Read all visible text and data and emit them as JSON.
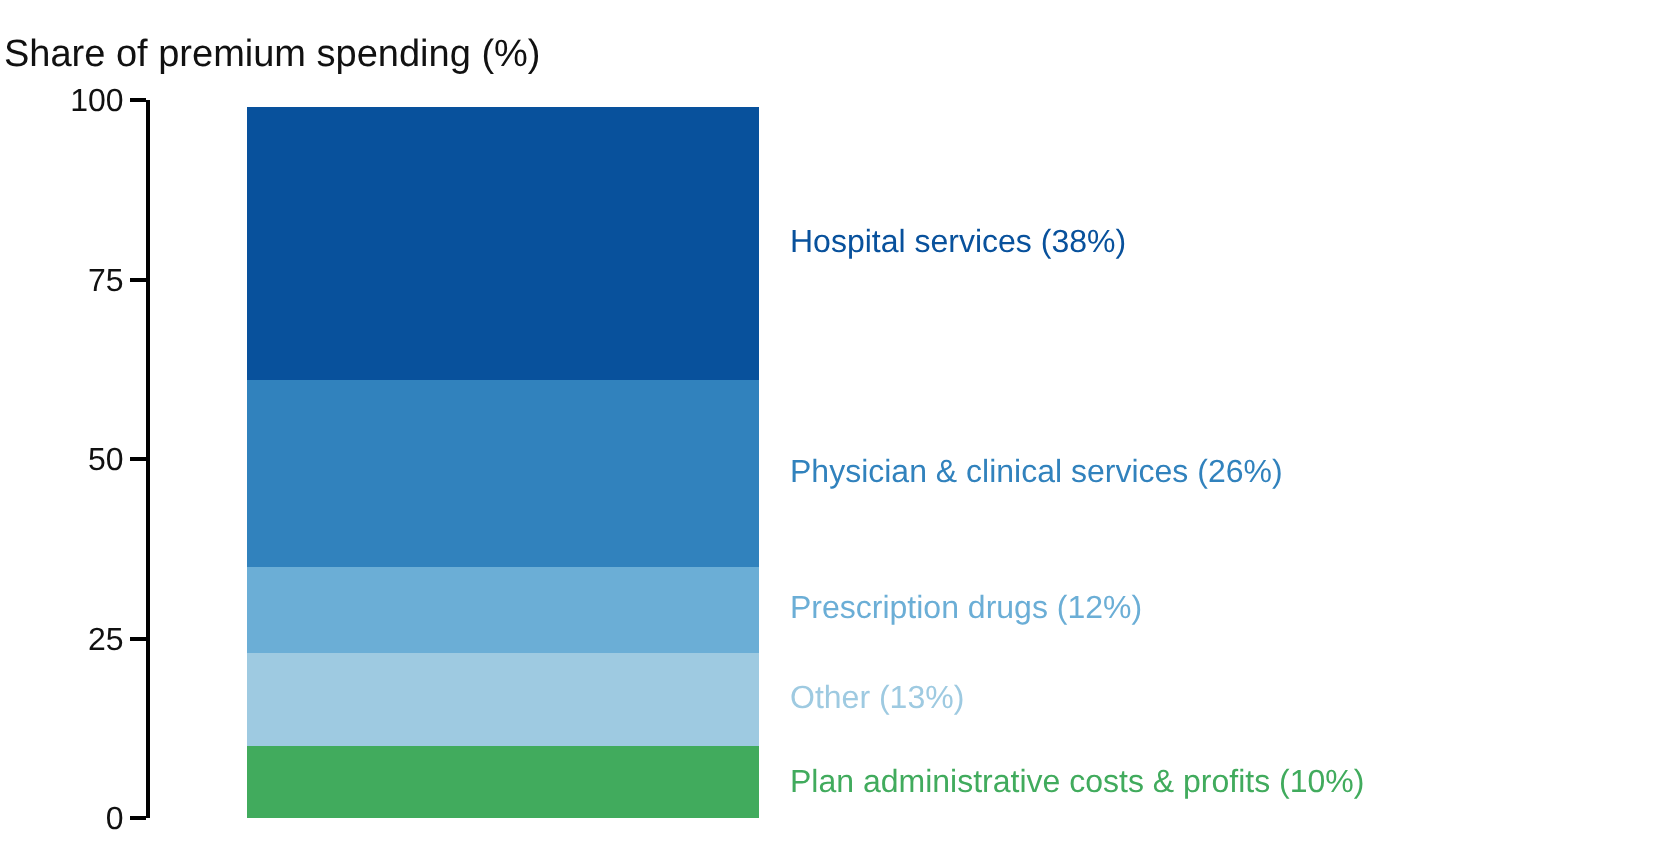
{
  "chart_data": {
    "type": "bar",
    "stacked": true,
    "ylabel": "Share of premium spending (%)",
    "categories": [
      null
    ],
    "series": [
      {
        "name": "Plan administrative costs & profits (10%)",
        "color": "#41ab5d",
        "values": [
          10
        ]
      },
      {
        "name": "Other (13%)",
        "color": "#9ecae1",
        "values": [
          13
        ]
      },
      {
        "name": "Prescription drugs (12%)",
        "color": "#6baed6",
        "values": [
          12
        ]
      },
      {
        "name": "Physician & clinical services (26%)",
        "color": "#3182bd",
        "values": [
          26
        ]
      },
      {
        "name": "Hospital services (38%)",
        "color": "#08519c",
        "values": [
          38
        ]
      }
    ],
    "ylim": [
      0,
      100
    ],
    "yticks": [
      0,
      25,
      50,
      75,
      100
    ],
    "legend": false
  }
}
